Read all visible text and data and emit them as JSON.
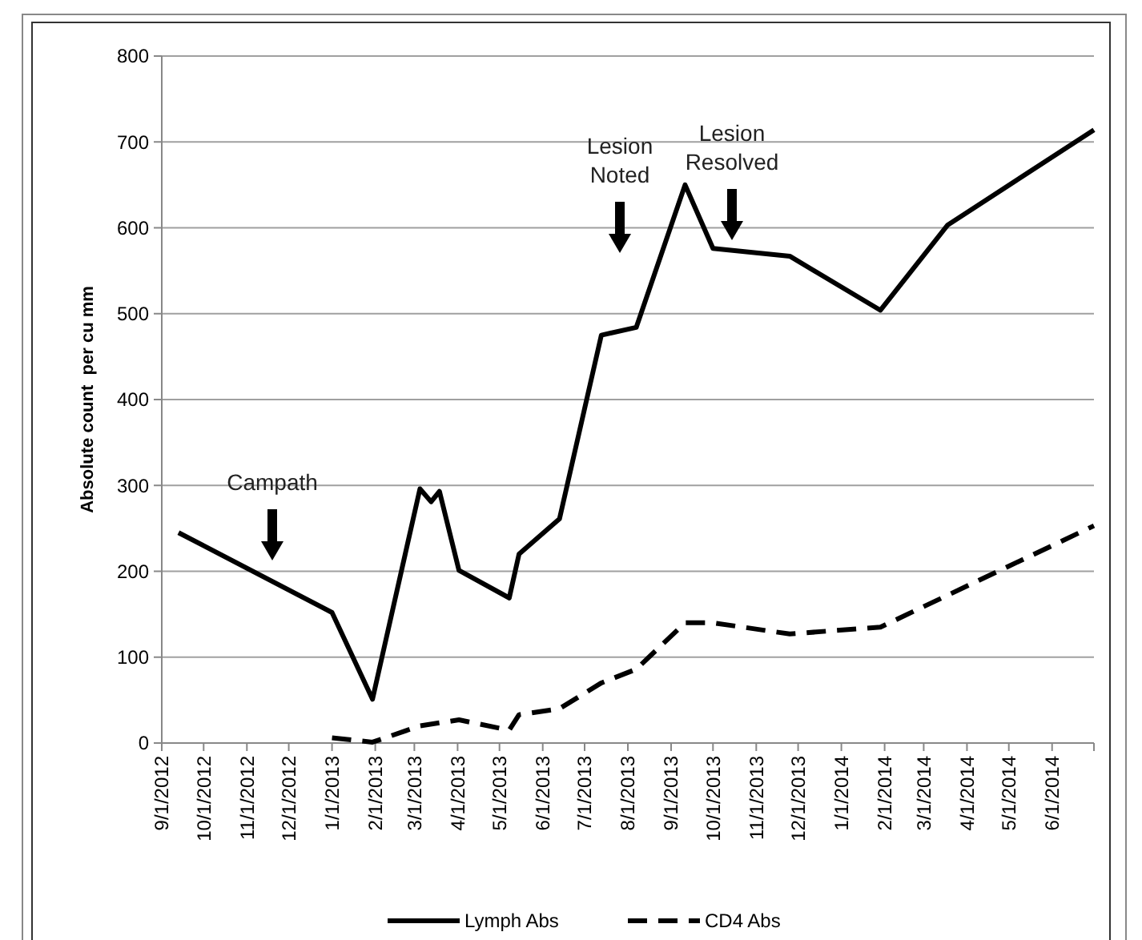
{
  "chart_data": {
    "type": "line",
    "ylabel": "Absolute count  per cu mm",
    "xlim": [
      "2012-09-01",
      "2014-07-01"
    ],
    "xticks": [
      {
        "value": "2012-09-01",
        "label": "9/1/2012"
      },
      {
        "value": "2012-10-01",
        "label": "10/1/2012"
      },
      {
        "value": "2012-11-01",
        "label": "11/1/2012"
      },
      {
        "value": "2012-12-01",
        "label": "12/1/2012"
      },
      {
        "value": "2013-01-01",
        "label": "1/1/2013"
      },
      {
        "value": "2013-02-01",
        "label": "2/1/2013"
      },
      {
        "value": "2013-03-01",
        "label": "3/1/2013"
      },
      {
        "value": "2013-04-01",
        "label": "4/1/2013"
      },
      {
        "value": "2013-05-01",
        "label": "5/1/2013"
      },
      {
        "value": "2013-06-01",
        "label": "6/1/2013"
      },
      {
        "value": "2013-07-01",
        "label": "7/1/2013"
      },
      {
        "value": "2013-08-01",
        "label": "8/1/2013"
      },
      {
        "value": "2013-09-01",
        "label": "9/1/2013"
      },
      {
        "value": "2013-10-01",
        "label": "10/1/2013"
      },
      {
        "value": "2013-11-01",
        "label": "11/1/2013"
      },
      {
        "value": "2013-12-01",
        "label": "12/1/2013"
      },
      {
        "value": "2014-01-01",
        "label": "1/1/2014"
      },
      {
        "value": "2014-02-01",
        "label": "2/1/2014"
      },
      {
        "value": "2014-03-01",
        "label": "3/1/2014"
      },
      {
        "value": "2014-04-01",
        "label": "4/1/2014"
      },
      {
        "value": "2014-05-01",
        "label": "5/1/2014"
      },
      {
        "value": "2014-06-01",
        "label": "6/1/2014"
      },
      {
        "value": "2014-07-01",
        "label": null
      }
    ],
    "ylim": [
      0,
      800
    ],
    "yticks": [
      0,
      100,
      200,
      300,
      400,
      500,
      600,
      700,
      800
    ],
    "grid": "y",
    "legend": "bottom",
    "marker": "none",
    "series": [
      {
        "name": "Lymph Abs",
        "color": "#000000",
        "line_style": "solid",
        "x": [
          "2012-09-13",
          "2013-01-01",
          "2013-01-30",
          "2013-03-05",
          "2013-03-13",
          "2013-03-19",
          "2013-04-02",
          "2013-05-08",
          "2013-05-15",
          "2013-06-13",
          "2013-07-13",
          "2013-08-07",
          "2013-09-11",
          "2013-10-01",
          "2013-11-25",
          "2014-01-29",
          "2014-03-18",
          "2014-07-01"
        ],
        "values": [
          245,
          152,
          51,
          296,
          281,
          293,
          201,
          169,
          220,
          261,
          475,
          484,
          650,
          576,
          567,
          504,
          603,
          714
        ]
      },
      {
        "name": "CD4 Abs",
        "color": "#000000",
        "line_style": "dashed",
        "x": [
          "2013-01-01",
          "2013-01-30",
          "2013-03-05",
          "2013-04-02",
          "2013-05-08",
          "2013-05-15",
          "2013-06-13",
          "2013-07-13",
          "2013-08-07",
          "2013-09-11",
          "2013-10-01",
          "2013-11-25",
          "2014-01-29",
          "2014-03-18",
          "2014-07-01"
        ],
        "values": [
          6,
          1,
          20,
          27,
          15,
          33,
          40,
          70,
          86,
          140,
          140,
          127,
          135,
          172,
          253
        ]
      }
    ],
    "annotations": [
      "Campath",
      "Lesion\nNoted",
      "Lesion\nResolved"
    ]
  }
}
